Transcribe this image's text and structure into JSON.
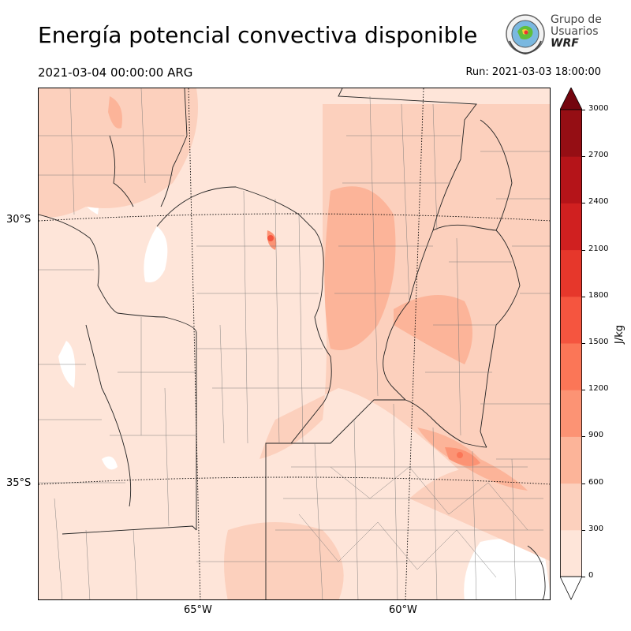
{
  "title": "Energía potencial convectiva disponible",
  "valid_time": "2021-03-04 00:00:00 ARG",
  "run_time": "Run: 2021-03-03 18:00:00",
  "logo": {
    "line1": "Grupo de",
    "line2": "Usuarios",
    "line3": "WRF"
  },
  "map": {
    "lat_labels": [
      "30°S",
      "35°S"
    ],
    "lon_labels": [
      "65°W",
      "60°W"
    ]
  },
  "colorbar": {
    "unit": "J/kg",
    "ticks": [
      "0",
      "300",
      "600",
      "900",
      "1200",
      "1500",
      "1800",
      "2100",
      "2400",
      "2700",
      "3000"
    ],
    "levels": [
      0,
      300,
      600,
      900,
      1200,
      1500,
      1800,
      2100,
      2400,
      2700,
      3000
    ],
    "colors": [
      "#fee5d9",
      "#fcd0bd",
      "#fcb499",
      "#fc9374",
      "#fb7657",
      "#f5553f",
      "#e6372b",
      "#d02020",
      "#b51419",
      "#950e14",
      "#74050e"
    ],
    "extend": "both"
  }
}
